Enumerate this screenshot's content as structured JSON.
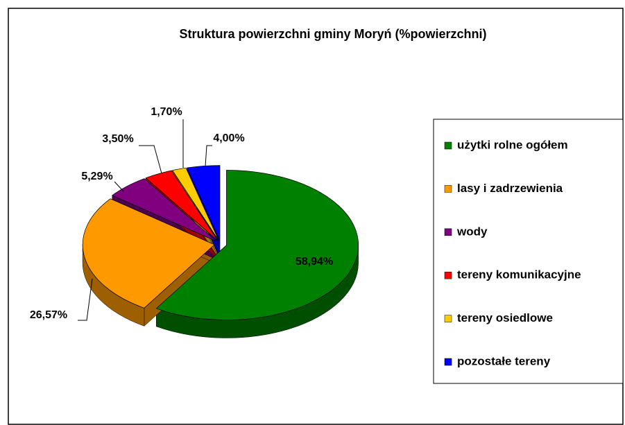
{
  "chart_data": {
    "type": "pie",
    "title": "Struktura powierzchni gminy Moryń (%powierzchni)",
    "categories": [
      "użytki rolne ogółem",
      "lasy i zadrzewienia",
      "wody",
      "tereny komunikacyjne",
      "tereny osiedlowe",
      "pozostałe tereny"
    ],
    "values": [
      58.94,
      26.57,
      5.29,
      3.5,
      1.7,
      4.0
    ],
    "value_labels": [
      "58,94%",
      "26,57%",
      "5,29%",
      "3,50%",
      "1,70%",
      "4,00%"
    ],
    "colors": [
      "#008000",
      "#ff9900",
      "#800080",
      "#ff0000",
      "#ffcc00",
      "#0000ff"
    ],
    "legend": "right"
  }
}
